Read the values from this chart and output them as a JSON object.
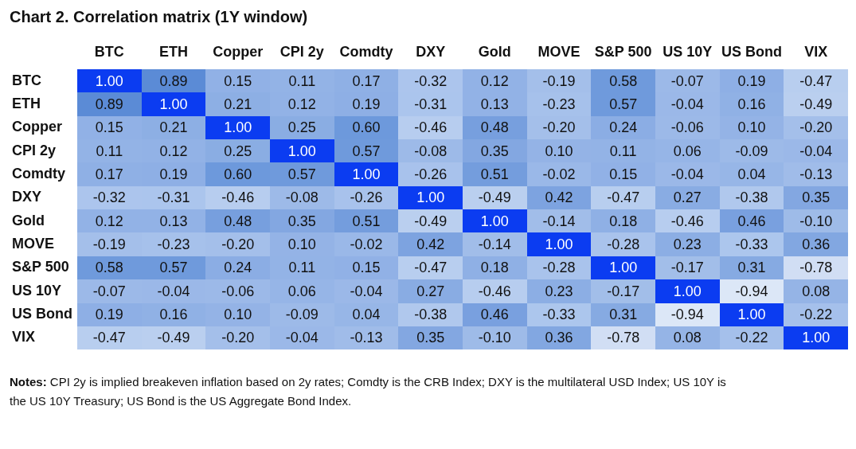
{
  "chart_data": {
    "type": "heatmap",
    "title": "Chart 2. Correlation matrix (1Y window)",
    "categories": [
      "BTC",
      "ETH",
      "Copper",
      "CPI 2y",
      "Comdty",
      "DXY",
      "Gold",
      "MOVE",
      "S&P 500",
      "US 10Y",
      "US Bond",
      "VIX"
    ],
    "y_categories": [
      "BTC",
      "ETH",
      "Copper",
      "CPI 2y",
      "Comdty",
      "DXY",
      "Gold",
      "MOVE",
      "S&P 500",
      "US 10Y",
      "US Bond",
      "VIX"
    ],
    "cells": [
      [
        1.0,
        0.89,
        0.15,
        0.11,
        0.17,
        -0.32,
        0.12,
        -0.19,
        0.58,
        -0.07,
        0.19,
        -0.47
      ],
      [
        0.89,
        1.0,
        0.21,
        0.12,
        0.19,
        -0.31,
        0.13,
        -0.23,
        0.57,
        -0.04,
        0.16,
        -0.49
      ],
      [
        0.15,
        0.21,
        1.0,
        0.25,
        0.6,
        -0.46,
        0.48,
        -0.2,
        0.24,
        -0.06,
        0.1,
        -0.2
      ],
      [
        0.11,
        0.12,
        0.25,
        1.0,
        0.57,
        -0.08,
        0.35,
        0.1,
        0.11,
        0.06,
        -0.09,
        -0.04
      ],
      [
        0.17,
        0.19,
        0.6,
        0.57,
        1.0,
        -0.26,
        0.51,
        -0.02,
        0.15,
        -0.04,
        0.04,
        -0.13
      ],
      [
        -0.32,
        -0.31,
        -0.46,
        -0.08,
        -0.26,
        1.0,
        -0.49,
        0.42,
        -0.47,
        0.27,
        -0.38,
        0.35
      ],
      [
        0.12,
        0.13,
        0.48,
        0.35,
        0.51,
        -0.49,
        1.0,
        -0.14,
        0.18,
        -0.46,
        0.46,
        -0.1
      ],
      [
        -0.19,
        -0.23,
        -0.2,
        0.1,
        -0.02,
        0.42,
        -0.14,
        1.0,
        -0.28,
        0.23,
        -0.33,
        0.36
      ],
      [
        0.58,
        0.57,
        0.24,
        0.11,
        0.15,
        -0.47,
        0.18,
        -0.28,
        1.0,
        -0.17,
        0.31,
        -0.78
      ],
      [
        -0.07,
        -0.04,
        -0.06,
        0.06,
        -0.04,
        0.27,
        -0.46,
        0.23,
        -0.17,
        1.0,
        -0.94,
        0.08
      ],
      [
        0.19,
        0.16,
        0.1,
        -0.09,
        0.04,
        -0.38,
        0.46,
        -0.33,
        0.31,
        -0.94,
        1.0,
        -0.22
      ],
      [
        -0.47,
        -0.49,
        -0.2,
        -0.04,
        -0.13,
        0.35,
        -0.1,
        0.36,
        -0.78,
        0.08,
        -0.22,
        1.0
      ]
    ],
    "cell_labels": [
      [
        "1.00",
        "0.89",
        "0.15",
        "0.11",
        "0.17",
        "-0.32",
        "0.12",
        "-0.19",
        "0.58",
        "-0.07",
        "0.19",
        "-0.47"
      ],
      [
        "0.89",
        "1.00",
        "0.21",
        "0.12",
        "0.19",
        "-0.31",
        "0.13",
        "-0.23",
        "0.57",
        "-0.04",
        "0.16",
        "-0.49"
      ],
      [
        "0.15",
        "0.21",
        "1.00",
        "0.25",
        "0.60",
        "-0.46",
        "0.48",
        "-0.20",
        "0.24",
        "-0.06",
        "0.10",
        "-0.20"
      ],
      [
        "0.11",
        "0.12",
        "0.25",
        "1.00",
        "0.57",
        "-0.08",
        "0.35",
        "0.10",
        "0.11",
        "0.06",
        "-0.09",
        "-0.04"
      ],
      [
        "0.17",
        "0.19",
        "0.60",
        "0.57",
        "1.00",
        "-0.26",
        "0.51",
        "-0.02",
        "0.15",
        "-0.04",
        "0.04",
        "-0.13"
      ],
      [
        "-0.32",
        "-0.31",
        "-0.46",
        "-0.08",
        "-0.26",
        "1.00",
        "-0.49",
        "0.42",
        "-0.47",
        "0.27",
        "-0.38",
        "0.35"
      ],
      [
        "0.12",
        "0.13",
        "0.48",
        "0.35",
        "0.51",
        "-0.49",
        "1.00",
        "-0.14",
        "0.18",
        "-0.46",
        "0.46",
        "-0.10"
      ],
      [
        "-0.19",
        "-0.23",
        "-0.20",
        "0.10",
        "-0.02",
        "0.42",
        "-0.14",
        "1.00",
        "-0.28",
        "0.23",
        "-0.33",
        "0.36"
      ],
      [
        "0.58",
        "0.57",
        "0.24",
        "0.11",
        "0.15",
        "-0.47",
        "0.18",
        "-0.28",
        "1.00",
        "-0.17",
        "0.31",
        "-0.78"
      ],
      [
        "-0.07",
        "-0.04",
        "-0.06",
        "0.06",
        "-0.04",
        "0.27",
        "-0.46",
        "0.23",
        "-0.17",
        "1.00",
        "-0.94",
        "0.08"
      ],
      [
        "0.19",
        "0.16",
        "0.10",
        "-0.09",
        "0.04",
        "-0.38",
        "0.46",
        "-0.33",
        "0.31",
        "-0.94",
        "1.00",
        "-0.22"
      ],
      [
        "-0.47",
        "-0.49",
        "-0.20",
        "-0.04",
        "-0.13",
        "0.35",
        "-0.10",
        "0.36",
        "-0.78",
        "0.08",
        "-0.22",
        "1.00"
      ]
    ],
    "colors": [
      "#dce7f7",
      "#d6e3f6",
      "#cedcf3",
      "#c8d8f2",
      "#c0d2f0",
      "#b6cdef",
      "#aec7ed",
      "#a8c2ec",
      "#a2bee9",
      "#9cb9e8",
      "#98b6e7",
      "#92b2e6",
      "#8caee4",
      "#85a9e2",
      "#7da3e0",
      "#749ddd",
      "#6c98dc",
      "#6693da",
      "#608fd8",
      "#5a8ad6",
      "#0b3cf1"
    ],
    "annotations": [
      "Notes: CPI 2y is implied breakeven inflation based on 2y rates; Comdty is the CRB Index; DXY is the multilateral USD Index; US 10Y is the US 10Y Treasury; US Bond is the US Aggregate Bond Index."
    ]
  }
}
